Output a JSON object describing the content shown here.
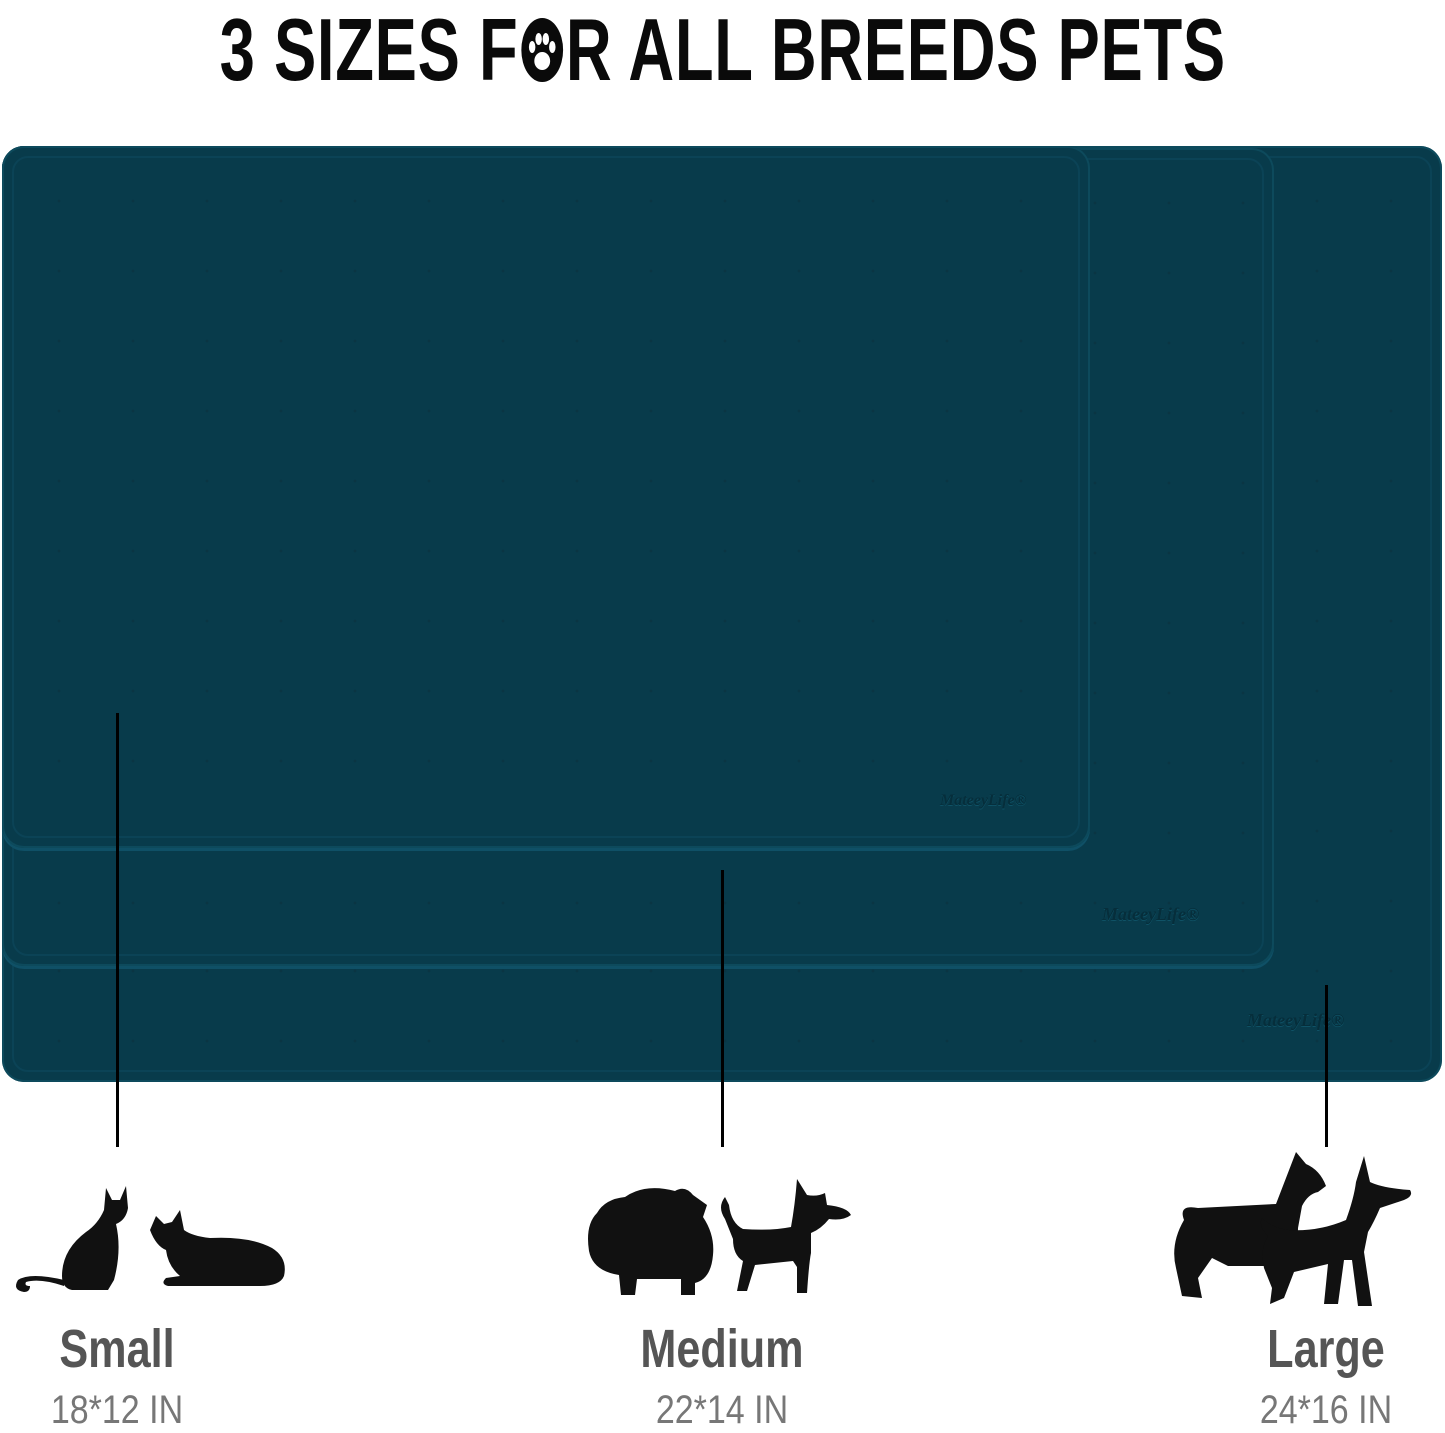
{
  "title": {
    "full": "3 SIZES FOR ALL BREEDS PETS",
    "before_icon": "3 SIZES F",
    "icon": "paw-icon",
    "after_icon": "R ALL BREEDS PETS"
  },
  "colors": {
    "mat": "#083b4b",
    "title": "#0a0a0a",
    "size_name": "#555555",
    "size_dim": "#777777"
  },
  "brand_logo": "MateeyLife®",
  "sizes": [
    {
      "name": "Small",
      "dimensions": "18*12 IN",
      "pets": "cats"
    },
    {
      "name": "Medium",
      "dimensions": "22*14 IN",
      "pets": "small dogs"
    },
    {
      "name": "Large",
      "dimensions": "24*16 IN",
      "pets": "large dogs"
    }
  ]
}
